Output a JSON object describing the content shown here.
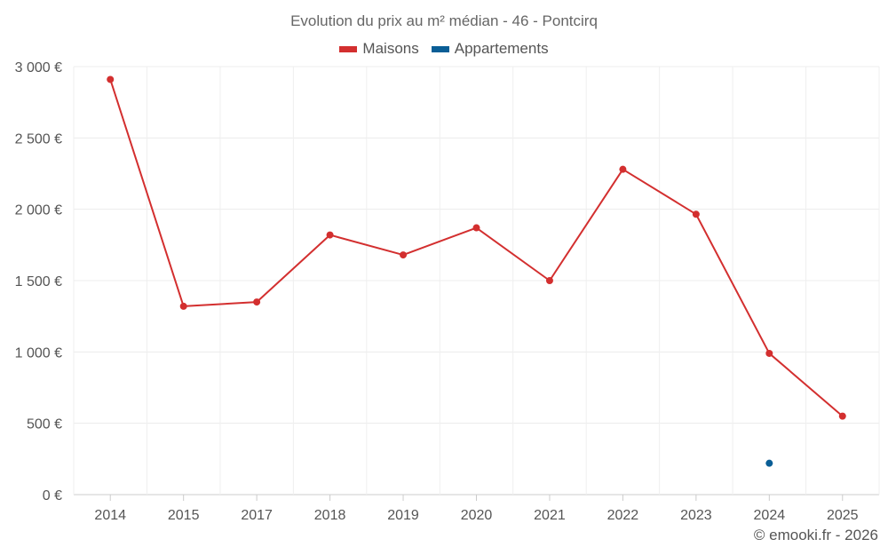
{
  "chart_data": {
    "type": "line",
    "title": "Evolution du prix au m² médian - 46 - Pontcirq",
    "categories": [
      "2014",
      "2015",
      "2017",
      "2018",
      "2019",
      "2020",
      "2021",
      "2022",
      "2023",
      "2024",
      "2025"
    ],
    "series": [
      {
        "name": "Maisons",
        "color": "#d32f2f",
        "values": [
          2910,
          1320,
          1350,
          1820,
          1680,
          1870,
          1500,
          2280,
          1965,
          990,
          550
        ]
      },
      {
        "name": "Appartements",
        "color": "#0a5e96",
        "values": [
          null,
          null,
          null,
          null,
          null,
          null,
          null,
          null,
          null,
          220,
          null
        ]
      }
    ],
    "ylim": [
      0,
      3000
    ],
    "yticks": [
      0,
      500,
      1000,
      1500,
      2000,
      2500,
      3000
    ],
    "ytick_labels": [
      "0 €",
      "500 €",
      "1 000 €",
      "1 500 €",
      "2 000 €",
      "2 500 €",
      "3 000 €"
    ],
    "grid": true,
    "legend_position": "top-center",
    "xlabel": "",
    "ylabel": ""
  },
  "credit": "© emooki.fr - 2026"
}
